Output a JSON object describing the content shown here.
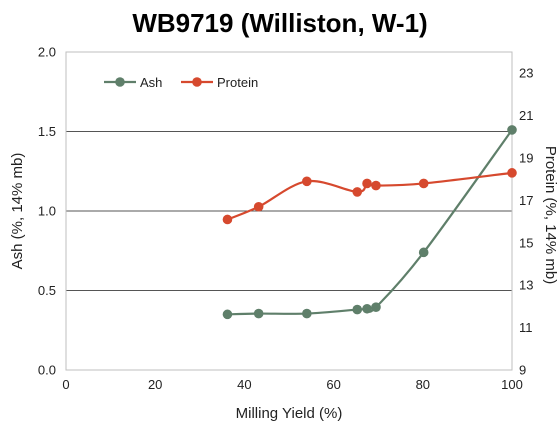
{
  "chart_data": {
    "type": "line",
    "title": "WB9719 (Williston, W-1)",
    "xlabel": "Milling Yield (%)",
    "ylabel": "Ash (%, 14% mb)",
    "y2label": "Protein (%, 14% mb)",
    "xlim": [
      0,
      100
    ],
    "ylim": [
      0,
      2.0
    ],
    "y2lim": [
      9,
      24
    ],
    "x_ticks": [
      "0",
      "20",
      "40",
      "60",
      "80",
      "100"
    ],
    "y_ticks": [
      "0.0",
      "0.5",
      "1.0",
      "1.5",
      "2.0"
    ],
    "y2_ticks": [
      "9",
      "11",
      "13",
      "15",
      "17",
      "19",
      "21",
      "23"
    ],
    "grid": "horizontal",
    "legend_position": "top-left",
    "series": [
      {
        "name": "Ash",
        "axis": "left",
        "color": "#5f7f6a",
        "x": [
          36.2,
          43.2,
          54.0,
          65.3,
          67.5,
          69.5,
          80.2,
          100.0
        ],
        "values": [
          0.35,
          0.355,
          0.355,
          0.38,
          0.385,
          0.395,
          0.74,
          1.51
        ]
      },
      {
        "name": "Protein",
        "axis": "right",
        "color": "#d6492e",
        "x": [
          36.2,
          43.2,
          54.0,
          65.3,
          67.5,
          69.5,
          80.2,
          100.0
        ],
        "values": [
          16.1,
          16.7,
          17.9,
          17.4,
          17.8,
          17.7,
          17.8,
          18.3
        ]
      }
    ]
  }
}
